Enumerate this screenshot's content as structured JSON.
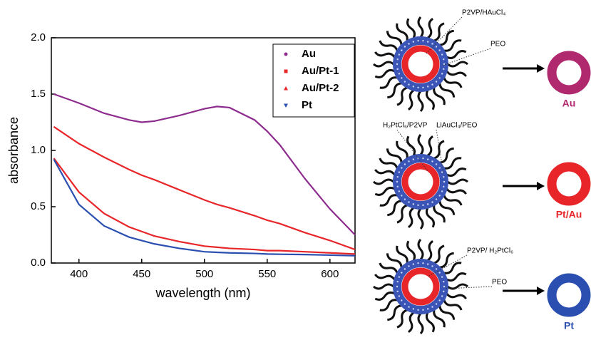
{
  "chart_data": {
    "type": "line",
    "x_label": "wavelength (nm)",
    "y_label": "absorbance",
    "x": [
      380,
      400,
      420,
      440,
      450,
      460,
      480,
      500,
      510,
      520,
      540,
      550,
      560,
      580,
      600,
      620
    ],
    "series": [
      {
        "name": "Au",
        "color": "#8e2c8e",
        "marker": "circle",
        "values": [
          1.5,
          1.42,
          1.33,
          1.27,
          1.25,
          1.26,
          1.31,
          1.37,
          1.39,
          1.38,
          1.27,
          1.17,
          1.05,
          0.75,
          0.48,
          0.25
        ]
      },
      {
        "name": "Au/Pt-1",
        "color": "#e8262a",
        "marker": "square",
        "values": [
          1.21,
          1.06,
          0.94,
          0.83,
          0.78,
          0.74,
          0.65,
          0.56,
          0.52,
          0.49,
          0.42,
          0.38,
          0.35,
          0.27,
          0.2,
          0.12
        ]
      },
      {
        "name": "Au/Pt-2",
        "color": "#e8262a",
        "marker": "triangle-up",
        "values": [
          0.93,
          0.63,
          0.44,
          0.32,
          0.28,
          0.24,
          0.19,
          0.15,
          0.14,
          0.13,
          0.12,
          0.11,
          0.11,
          0.1,
          0.09,
          0.08
        ]
      },
      {
        "name": "Pt",
        "color": "#2a4fb0",
        "marker": "triangle-down",
        "values": [
          0.92,
          0.52,
          0.33,
          0.23,
          0.2,
          0.17,
          0.13,
          0.1,
          0.095,
          0.09,
          0.085,
          0.08,
          0.078,
          0.075,
          0.07,
          0.065
        ]
      }
    ],
    "xlim": [
      378,
      620
    ],
    "ylim": [
      0,
      2
    ],
    "xticks": [
      400,
      450,
      500,
      550,
      600
    ],
    "yticks": [
      {
        "value": 0,
        "label": "0.0"
      },
      0.5,
      {
        "value": 1,
        "label": "1.0"
      },
      1.5,
      {
        "value": 2,
        "label": "2.0"
      }
    ],
    "legend": "upper right"
  },
  "diagram": {
    "panels": [
      {
        "labels": [
          "P2VP/HAuCl₄",
          "PEO"
        ],
        "product": "Au",
        "color": "#b0286e"
      },
      {
        "labels": [
          "H₂PtCl₆/P2VP",
          "LiAuCl₄/PEO"
        ],
        "product": "Pt/Au",
        "color": "#e8262a"
      },
      {
        "labels": [
          "P2VP/ H₂PtCl₆",
          "PEO"
        ],
        "product": "Pt",
        "color": "#2a4fb0"
      }
    ]
  }
}
